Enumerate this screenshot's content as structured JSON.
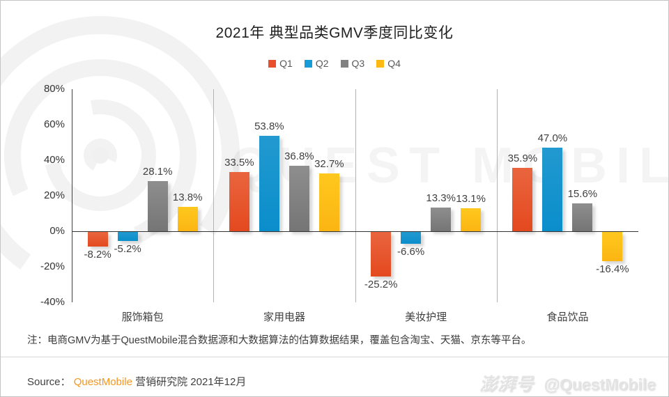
{
  "title": "2021年 典型品类GMV季度同比变化",
  "note": "注：电商GMV为基于QuestMobile混合数据源和大数据算法的估算数据结果，覆盖包含淘宝、天猫、京东等平台。",
  "source": {
    "prefix": "Source：",
    "brand": "QuestMobile",
    "suffix": "营销研究院 2021年12月",
    "brand_color": "#F7941D"
  },
  "watermark": {
    "big_text": "QUEST MOBILE",
    "badge": "澎湃号",
    "handle": "@QuestMobile"
  },
  "chart_data": {
    "type": "bar",
    "title": "2021年 典型品类GMV季度同比变化",
    "categories": [
      "服饰箱包",
      "家用电器",
      "美妆护理",
      "食品饮品"
    ],
    "series": [
      {
        "name": "Q1",
        "color": "#E8502B",
        "color_top": "#E9653E",
        "color_bottom": "#E4491F",
        "values": [
          -8.2,
          33.5,
          -25.2,
          35.9
        ]
      },
      {
        "name": "Q2",
        "color": "#189CD8",
        "color_top": "#2299D0",
        "color_bottom": "#0A8ECB",
        "values": [
          -5.2,
          53.8,
          -6.6,
          47.0
        ]
      },
      {
        "name": "Q3",
        "color": "#808080",
        "color_top": "#8E8E8E",
        "color_bottom": "#757575",
        "values": [
          28.1,
          36.8,
          13.3,
          15.6
        ]
      },
      {
        "name": "Q4",
        "color": "#FDB913",
        "color_top": "#FFC81E",
        "color_bottom": "#FBB513",
        "values": [
          13.8,
          32.7,
          13.1,
          -16.4
        ]
      }
    ],
    "value_label_format": "one_decimal_percent",
    "ylabel": "",
    "ylim": [
      -40,
      80
    ],
    "yticks": [
      {
        "label": "80%",
        "value": 80
      },
      {
        "label": "60%",
        "value": 60
      },
      {
        "label": "40%",
        "value": 40
      },
      {
        "label": "20%",
        "value": 20
      },
      {
        "label": "0%",
        "value": 0
      },
      {
        "label": "-20%",
        "value": -20
      },
      {
        "label": "-40%",
        "value": -40
      }
    ],
    "grid": false,
    "legend_position": "top",
    "legend": [
      "Q1",
      "Q2",
      "Q3",
      "Q4"
    ]
  }
}
